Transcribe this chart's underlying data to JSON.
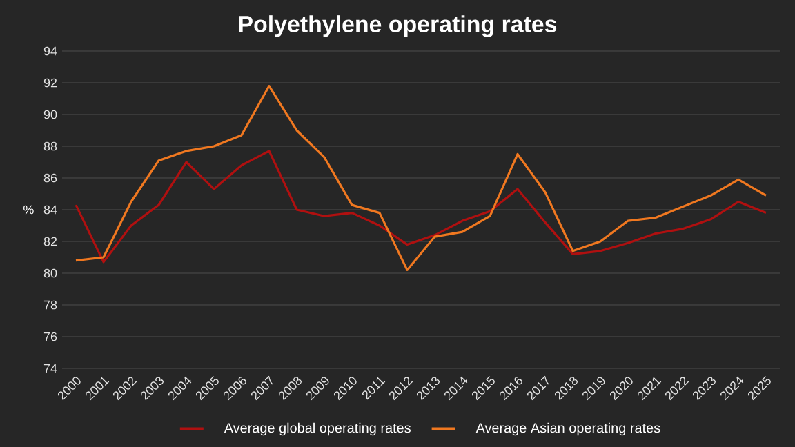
{
  "chart_data": {
    "type": "line",
    "title": "Polyethylene operating rates",
    "ylabel": "%",
    "categories": [
      "2000",
      "2001",
      "2002",
      "2003",
      "2004",
      "2005",
      "2006",
      "2007",
      "2008",
      "2009",
      "2010",
      "2011",
      "2012",
      "2013",
      "2014",
      "2015",
      "2016",
      "2017",
      "2018",
      "2019",
      "2020",
      "2021",
      "2022",
      "2023",
      "2024",
      "2025"
    ],
    "series": [
      {
        "name": "Average global operating rates",
        "color": "#b01010",
        "values": [
          84.3,
          80.7,
          83.0,
          84.3,
          87.0,
          85.3,
          86.8,
          87.7,
          84.0,
          83.6,
          83.8,
          83.0,
          81.8,
          82.4,
          83.3,
          83.9,
          85.3,
          83.2,
          81.2,
          81.4,
          81.9,
          82.5,
          82.8,
          83.4,
          84.5,
          83.8
        ]
      },
      {
        "name": "Average Asian operating rates",
        "color": "#f07820",
        "values": [
          80.8,
          81.0,
          84.5,
          87.1,
          87.7,
          88.0,
          88.7,
          91.8,
          89.0,
          87.3,
          84.3,
          83.8,
          80.2,
          82.3,
          82.6,
          83.6,
          87.5,
          85.1,
          81.4,
          82.0,
          83.3,
          83.5,
          84.2,
          84.9,
          85.9,
          84.9
        ]
      }
    ],
    "ylim": [
      74,
      94
    ],
    "yticks": [
      74,
      76,
      78,
      80,
      82,
      84,
      86,
      88,
      90,
      92,
      94
    ],
    "grid": "y",
    "legend": "bottom",
    "marker": "none",
    "line_style": "solid"
  }
}
